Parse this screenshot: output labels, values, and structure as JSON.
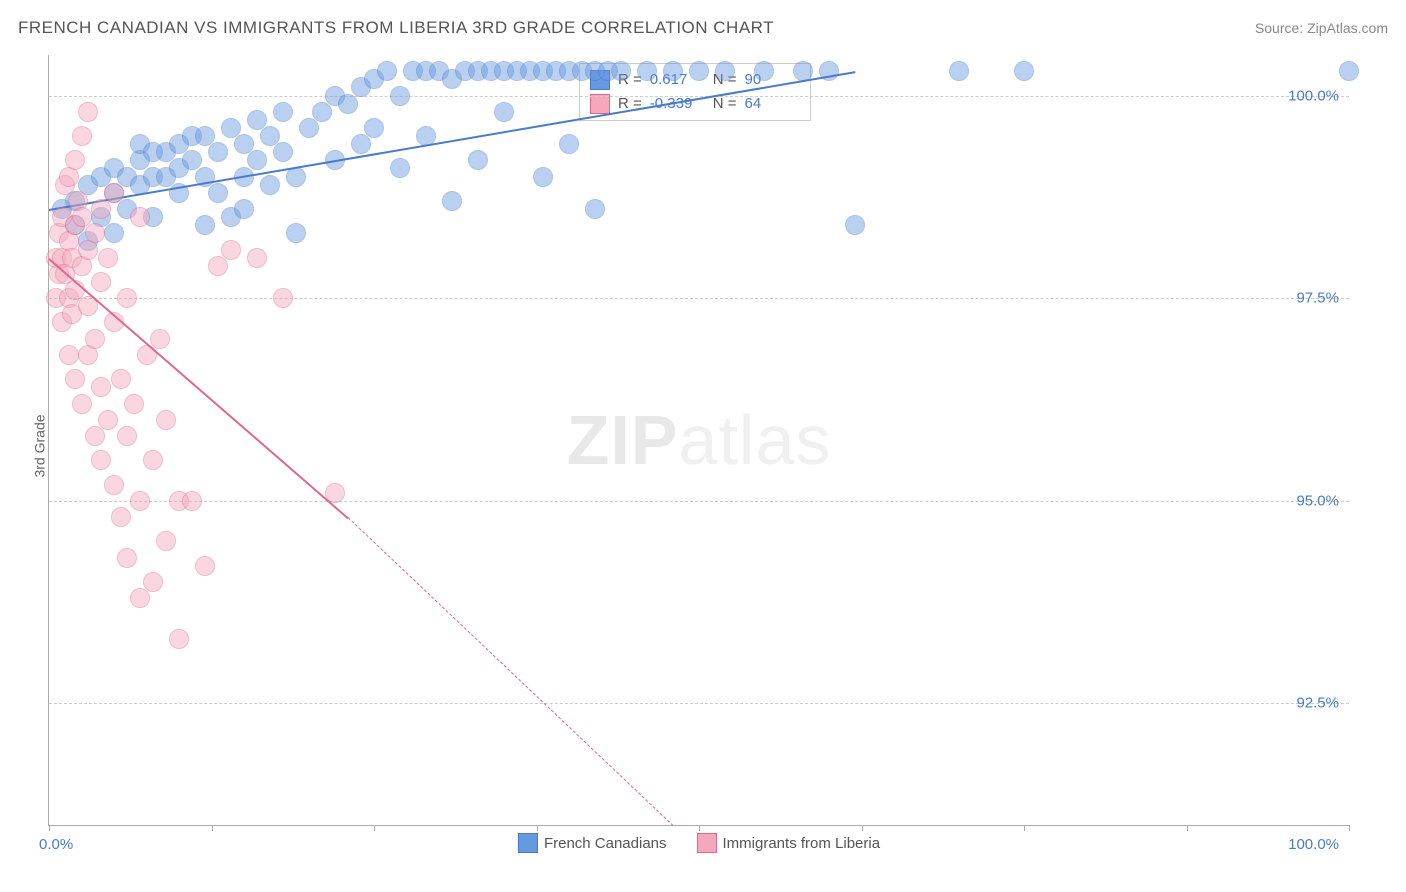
{
  "header": {
    "title": "FRENCH CANADIAN VS IMMIGRANTS FROM LIBERIA 3RD GRADE CORRELATION CHART",
    "source_prefix": "Source: ",
    "source_name": "ZipAtlas.com"
  },
  "ylabel": "3rd Grade",
  "watermark": {
    "bold": "ZIP",
    "light": "atlas"
  },
  "chart": {
    "type": "scatter",
    "xlim": [
      0,
      100
    ],
    "ylim": [
      91.0,
      100.5
    ],
    "xlabel_min": "0.0%",
    "xlabel_max": "100.0%",
    "ytick_values": [
      92.5,
      95.0,
      97.5,
      100.0
    ],
    "ytick_labels": [
      "92.5%",
      "95.0%",
      "97.5%",
      "100.0%"
    ],
    "xtick_positions": [
      0,
      12.5,
      25,
      37.5,
      50,
      62.5,
      75,
      87.5,
      100
    ],
    "background_color": "#ffffff",
    "grid_color": "#cccccc",
    "axis_color": "#aaaaaa",
    "label_color": "#4a7bc8",
    "marker_radius": 9,
    "marker_opacity": 0.45,
    "series": [
      {
        "id": "french_canadians",
        "name": "French Canadians",
        "color": "#6699e0",
        "border": "#4a7bc8",
        "R": "0.617",
        "N": "90",
        "trend": {
          "x1": 0,
          "y1": 98.6,
          "x2": 62,
          "y2": 100.3,
          "solid_until_x": 62
        },
        "points": [
          [
            1,
            98.6
          ],
          [
            2,
            98.4
          ],
          [
            2,
            98.7
          ],
          [
            3,
            98.9
          ],
          [
            3,
            98.2
          ],
          [
            4,
            98.5
          ],
          [
            4,
            99.0
          ],
          [
            5,
            98.8
          ],
          [
            5,
            99.1
          ],
          [
            5,
            98.3
          ],
          [
            6,
            99.0
          ],
          [
            6,
            98.6
          ],
          [
            7,
            99.2
          ],
          [
            7,
            98.9
          ],
          [
            7,
            99.4
          ],
          [
            8,
            99.0
          ],
          [
            8,
            99.3
          ],
          [
            8,
            98.5
          ],
          [
            9,
            99.3
          ],
          [
            9,
            99.0
          ],
          [
            10,
            99.1
          ],
          [
            10,
            99.4
          ],
          [
            10,
            98.8
          ],
          [
            11,
            99.2
          ],
          [
            11,
            99.5
          ],
          [
            12,
            99.5
          ],
          [
            12,
            99.0
          ],
          [
            12,
            98.4
          ],
          [
            13,
            99.3
          ],
          [
            13,
            98.8
          ],
          [
            14,
            99.6
          ],
          [
            14,
            98.5
          ],
          [
            15,
            99.4
          ],
          [
            15,
            99.0
          ],
          [
            15,
            98.6
          ],
          [
            16,
            99.7
          ],
          [
            16,
            99.2
          ],
          [
            17,
            99.5
          ],
          [
            17,
            98.9
          ],
          [
            18,
            99.8
          ],
          [
            18,
            99.3
          ],
          [
            19,
            99.0
          ],
          [
            19,
            98.3
          ],
          [
            20,
            99.6
          ],
          [
            21,
            99.8
          ],
          [
            22,
            100.0
          ],
          [
            22,
            99.2
          ],
          [
            23,
            99.9
          ],
          [
            24,
            100.1
          ],
          [
            24,
            99.4
          ],
          [
            25,
            100.2
          ],
          [
            25,
            99.6
          ],
          [
            26,
            100.3
          ],
          [
            27,
            100.0
          ],
          [
            27,
            99.1
          ],
          [
            28,
            100.3
          ],
          [
            29,
            100.3
          ],
          [
            29,
            99.5
          ],
          [
            30,
            100.3
          ],
          [
            31,
            100.2
          ],
          [
            31,
            98.7
          ],
          [
            32,
            100.3
          ],
          [
            33,
            100.3
          ],
          [
            33,
            99.2
          ],
          [
            34,
            100.3
          ],
          [
            35,
            100.3
          ],
          [
            35,
            99.8
          ],
          [
            36,
            100.3
          ],
          [
            37,
            100.3
          ],
          [
            38,
            100.3
          ],
          [
            38,
            99.0
          ],
          [
            39,
            100.3
          ],
          [
            40,
            100.3
          ],
          [
            40,
            99.4
          ],
          [
            41,
            100.3
          ],
          [
            42,
            100.3
          ],
          [
            42,
            98.6
          ],
          [
            43,
            100.3
          ],
          [
            44,
            100.3
          ],
          [
            46,
            100.3
          ],
          [
            48,
            100.3
          ],
          [
            50,
            100.3
          ],
          [
            52,
            100.3
          ],
          [
            55,
            100.3
          ],
          [
            58,
            100.3
          ],
          [
            60,
            100.3
          ],
          [
            62,
            98.4
          ],
          [
            70,
            100.3
          ],
          [
            75,
            100.3
          ],
          [
            100,
            100.3
          ]
        ]
      },
      {
        "id": "immigrants_liberia",
        "name": "Immigrants from Liberia",
        "color": "#f5a8bb",
        "border": "#e06890",
        "R": "-0.339",
        "N": "64",
        "trend": {
          "x1": 0,
          "y1": 98.0,
          "x2": 48,
          "y2": 91.0,
          "solid_until_x": 23,
          "solid_y": 94.8
        },
        "points": [
          [
            0.5,
            98.0
          ],
          [
            0.5,
            97.5
          ],
          [
            0.8,
            98.3
          ],
          [
            0.8,
            97.8
          ],
          [
            1,
            98.5
          ],
          [
            1,
            98.0
          ],
          [
            1,
            97.2
          ],
          [
            1.2,
            97.8
          ],
          [
            1.2,
            98.9
          ],
          [
            1.5,
            98.2
          ],
          [
            1.5,
            97.5
          ],
          [
            1.5,
            99.0
          ],
          [
            1.5,
            96.8
          ],
          [
            1.8,
            98.0
          ],
          [
            1.8,
            97.3
          ],
          [
            2,
            98.4
          ],
          [
            2,
            97.6
          ],
          [
            2,
            99.2
          ],
          [
            2,
            96.5
          ],
          [
            2.2,
            98.7
          ],
          [
            2.5,
            97.9
          ],
          [
            2.5,
            98.5
          ],
          [
            2.5,
            96.2
          ],
          [
            2.5,
            99.5
          ],
          [
            3,
            98.1
          ],
          [
            3,
            97.4
          ],
          [
            3,
            96.8
          ],
          [
            3,
            99.8
          ],
          [
            3.5,
            98.3
          ],
          [
            3.5,
            97.0
          ],
          [
            3.5,
            95.8
          ],
          [
            4,
            98.6
          ],
          [
            4,
            97.7
          ],
          [
            4,
            96.4
          ],
          [
            4,
            95.5
          ],
          [
            4.5,
            98.0
          ],
          [
            4.5,
            96.0
          ],
          [
            5,
            97.2
          ],
          [
            5,
            98.8
          ],
          [
            5,
            95.2
          ],
          [
            5.5,
            96.5
          ],
          [
            5.5,
            94.8
          ],
          [
            6,
            97.5
          ],
          [
            6,
            95.8
          ],
          [
            6,
            94.3
          ],
          [
            6.5,
            96.2
          ],
          [
            7,
            98.5
          ],
          [
            7,
            95.0
          ],
          [
            7,
            93.8
          ],
          [
            7.5,
            96.8
          ],
          [
            8,
            95.5
          ],
          [
            8,
            94.0
          ],
          [
            8.5,
            97.0
          ],
          [
            9,
            94.5
          ],
          [
            9,
            96.0
          ],
          [
            10,
            95.0
          ],
          [
            10,
            93.3
          ],
          [
            11,
            95.0
          ],
          [
            12,
            94.2
          ],
          [
            13,
            97.9
          ],
          [
            14,
            98.1
          ],
          [
            16,
            98.0
          ],
          [
            18,
            97.5
          ],
          [
            22,
            95.1
          ]
        ]
      }
    ]
  },
  "stats_labels": {
    "r_prefix": "R =",
    "n_prefix": "N ="
  },
  "legend": {
    "item1": "French Canadians",
    "item2": "Immigrants from Liberia"
  }
}
